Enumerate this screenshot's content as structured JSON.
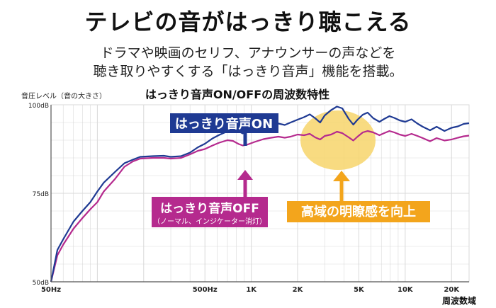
{
  "headline": "テレビの音がはっきり聴こえる",
  "description": {
    "line1": "ドラマや映画のセリフ、アナウンサーの声などを",
    "line2": "聴き取りやすくする「はっきり音声」機能を搭載。"
  },
  "chart_data": {
    "type": "line",
    "title": "はっきり音声ON/OFFの周波数特性",
    "ylabel": "音圧レベル（音の大きさ）",
    "xlabel": "周波数域",
    "x_scale": "log",
    "xlim": [
      50,
      26000
    ],
    "ylim": [
      50,
      100
    ],
    "y_ticks": [
      {
        "value": 100,
        "label": "100dB"
      },
      {
        "value": 75,
        "label": "75dB"
      },
      {
        "value": 50,
        "label": "50dB"
      }
    ],
    "x_ticks": [
      {
        "value": 50,
        "label": "50Hz"
      },
      {
        "value": 500,
        "label": "500Hz"
      },
      {
        "value": 1000,
        "label": "1K"
      },
      {
        "value": 2000,
        "label": "2K"
      },
      {
        "value": 5000,
        "label": "5K"
      },
      {
        "value": 10000,
        "label": "10K"
      },
      {
        "value": 20000,
        "label": "20K"
      }
    ],
    "series": [
      {
        "name": "はっきり音声ON",
        "color": "#1f3a93",
        "points": [
          [
            50,
            50
          ],
          [
            55,
            59
          ],
          [
            60,
            62
          ],
          [
            70,
            67
          ],
          [
            80,
            70
          ],
          [
            90,
            72.5
          ],
          [
            100,
            75.5
          ],
          [
            110,
            78
          ],
          [
            130,
            81
          ],
          [
            150,
            83.5
          ],
          [
            170,
            84.5
          ],
          [
            190,
            85.3
          ],
          [
            230,
            85.5
          ],
          [
            270,
            85.6
          ],
          [
            300,
            85.3
          ],
          [
            350,
            85.5
          ],
          [
            400,
            86.5
          ],
          [
            450,
            88
          ],
          [
            500,
            89
          ],
          [
            560,
            90.5
          ],
          [
            620,
            91.5
          ],
          [
            700,
            92.5
          ],
          [
            760,
            93
          ],
          [
            830,
            92.5
          ],
          [
            880,
            91.9
          ],
          [
            950,
            92.3
          ],
          [
            1050,
            93
          ],
          [
            1200,
            93.8
          ],
          [
            1350,
            94.3
          ],
          [
            1500,
            94.7
          ],
          [
            1650,
            94.3
          ],
          [
            1800,
            95
          ],
          [
            2000,
            95.8
          ],
          [
            2200,
            96.5
          ],
          [
            2400,
            97.3
          ],
          [
            2600,
            96.2
          ],
          [
            2800,
            95
          ],
          [
            3000,
            97
          ],
          [
            3300,
            98.5
          ],
          [
            3600,
            99.5
          ],
          [
            3900,
            99
          ],
          [
            4300,
            96
          ],
          [
            4600,
            94.4
          ],
          [
            4900,
            95.8
          ],
          [
            5300,
            97.2
          ],
          [
            5700,
            97.8
          ],
          [
            6200,
            96.2
          ],
          [
            6800,
            95.2
          ],
          [
            7300,
            96
          ],
          [
            7900,
            96.8
          ],
          [
            8500,
            96.3
          ],
          [
            9200,
            95.6
          ],
          [
            10000,
            95.2
          ],
          [
            11000,
            95.9
          ],
          [
            12000,
            94.7
          ],
          [
            13000,
            93.8
          ],
          [
            14500,
            92.8
          ],
          [
            16000,
            93.8
          ],
          [
            18000,
            92.6
          ],
          [
            20000,
            93.5
          ],
          [
            22000,
            93.9
          ],
          [
            24000,
            94.6
          ],
          [
            26000,
            94.8
          ]
        ]
      },
      {
        "name": "はっきり音声OFF",
        "subname": "（ノーマル、インジケーター消灯）",
        "color": "#b52a8e",
        "points": [
          [
            50,
            50
          ],
          [
            55,
            57.5
          ],
          [
            60,
            60.5
          ],
          [
            70,
            65
          ],
          [
            80,
            68
          ],
          [
            90,
            70.5
          ],
          [
            100,
            72.5
          ],
          [
            110,
            75.5
          ],
          [
            130,
            79
          ],
          [
            150,
            82.5
          ],
          [
            170,
            84
          ],
          [
            190,
            84.8
          ],
          [
            230,
            85
          ],
          [
            270,
            85
          ],
          [
            300,
            84.8
          ],
          [
            350,
            85
          ],
          [
            400,
            86
          ],
          [
            450,
            87
          ],
          [
            500,
            87.5
          ],
          [
            560,
            88.5
          ],
          [
            620,
            89.3
          ],
          [
            700,
            90
          ],
          [
            760,
            89.8
          ],
          [
            830,
            88.9
          ],
          [
            880,
            88.5
          ],
          [
            950,
            88.8
          ],
          [
            1050,
            89.5
          ],
          [
            1200,
            90.3
          ],
          [
            1350,
            90.7
          ],
          [
            1500,
            91
          ],
          [
            1650,
            90.7
          ],
          [
            1800,
            91
          ],
          [
            2000,
            91.6
          ],
          [
            2200,
            91.4
          ],
          [
            2400,
            91.8
          ],
          [
            2600,
            90.8
          ],
          [
            2800,
            90.2
          ],
          [
            3000,
            91.2
          ],
          [
            3300,
            91.6
          ],
          [
            3600,
            92.4
          ],
          [
            3900,
            92
          ],
          [
            4300,
            90.8
          ],
          [
            4600,
            89.9
          ],
          [
            4900,
            91
          ],
          [
            5300,
            92.2
          ],
          [
            5700,
            92.6
          ],
          [
            6200,
            92.2
          ],
          [
            6800,
            91.4
          ],
          [
            7300,
            92
          ],
          [
            7900,
            92.6
          ],
          [
            8500,
            92.2
          ],
          [
            9200,
            91.6
          ],
          [
            10000,
            91.2
          ],
          [
            11000,
            91.8
          ],
          [
            12000,
            91.2
          ],
          [
            13000,
            90.6
          ],
          [
            14500,
            89.7
          ],
          [
            16000,
            90.6
          ],
          [
            18000,
            89.9
          ],
          [
            20000,
            90.2
          ],
          [
            22000,
            90.7
          ],
          [
            24000,
            91.1
          ],
          [
            26000,
            91.3
          ]
        ]
      }
    ],
    "annotations": [
      {
        "id": "on",
        "text": "はっきり音声ON"
      },
      {
        "id": "off",
        "text": "はっきり音声OFF",
        "subtext": "（ノーマル、インジケーター消灯）"
      },
      {
        "id": "boost",
        "text": "高域の明瞭感を向上"
      }
    ],
    "colors": {
      "on_label_bg": "#1f3a93",
      "off_label_bg": "#b52a8e",
      "boost_label_bg": "#f3a51c",
      "highlight": "#f7d56b",
      "grid": "#d9d9d9",
      "axis": "#555555"
    }
  }
}
